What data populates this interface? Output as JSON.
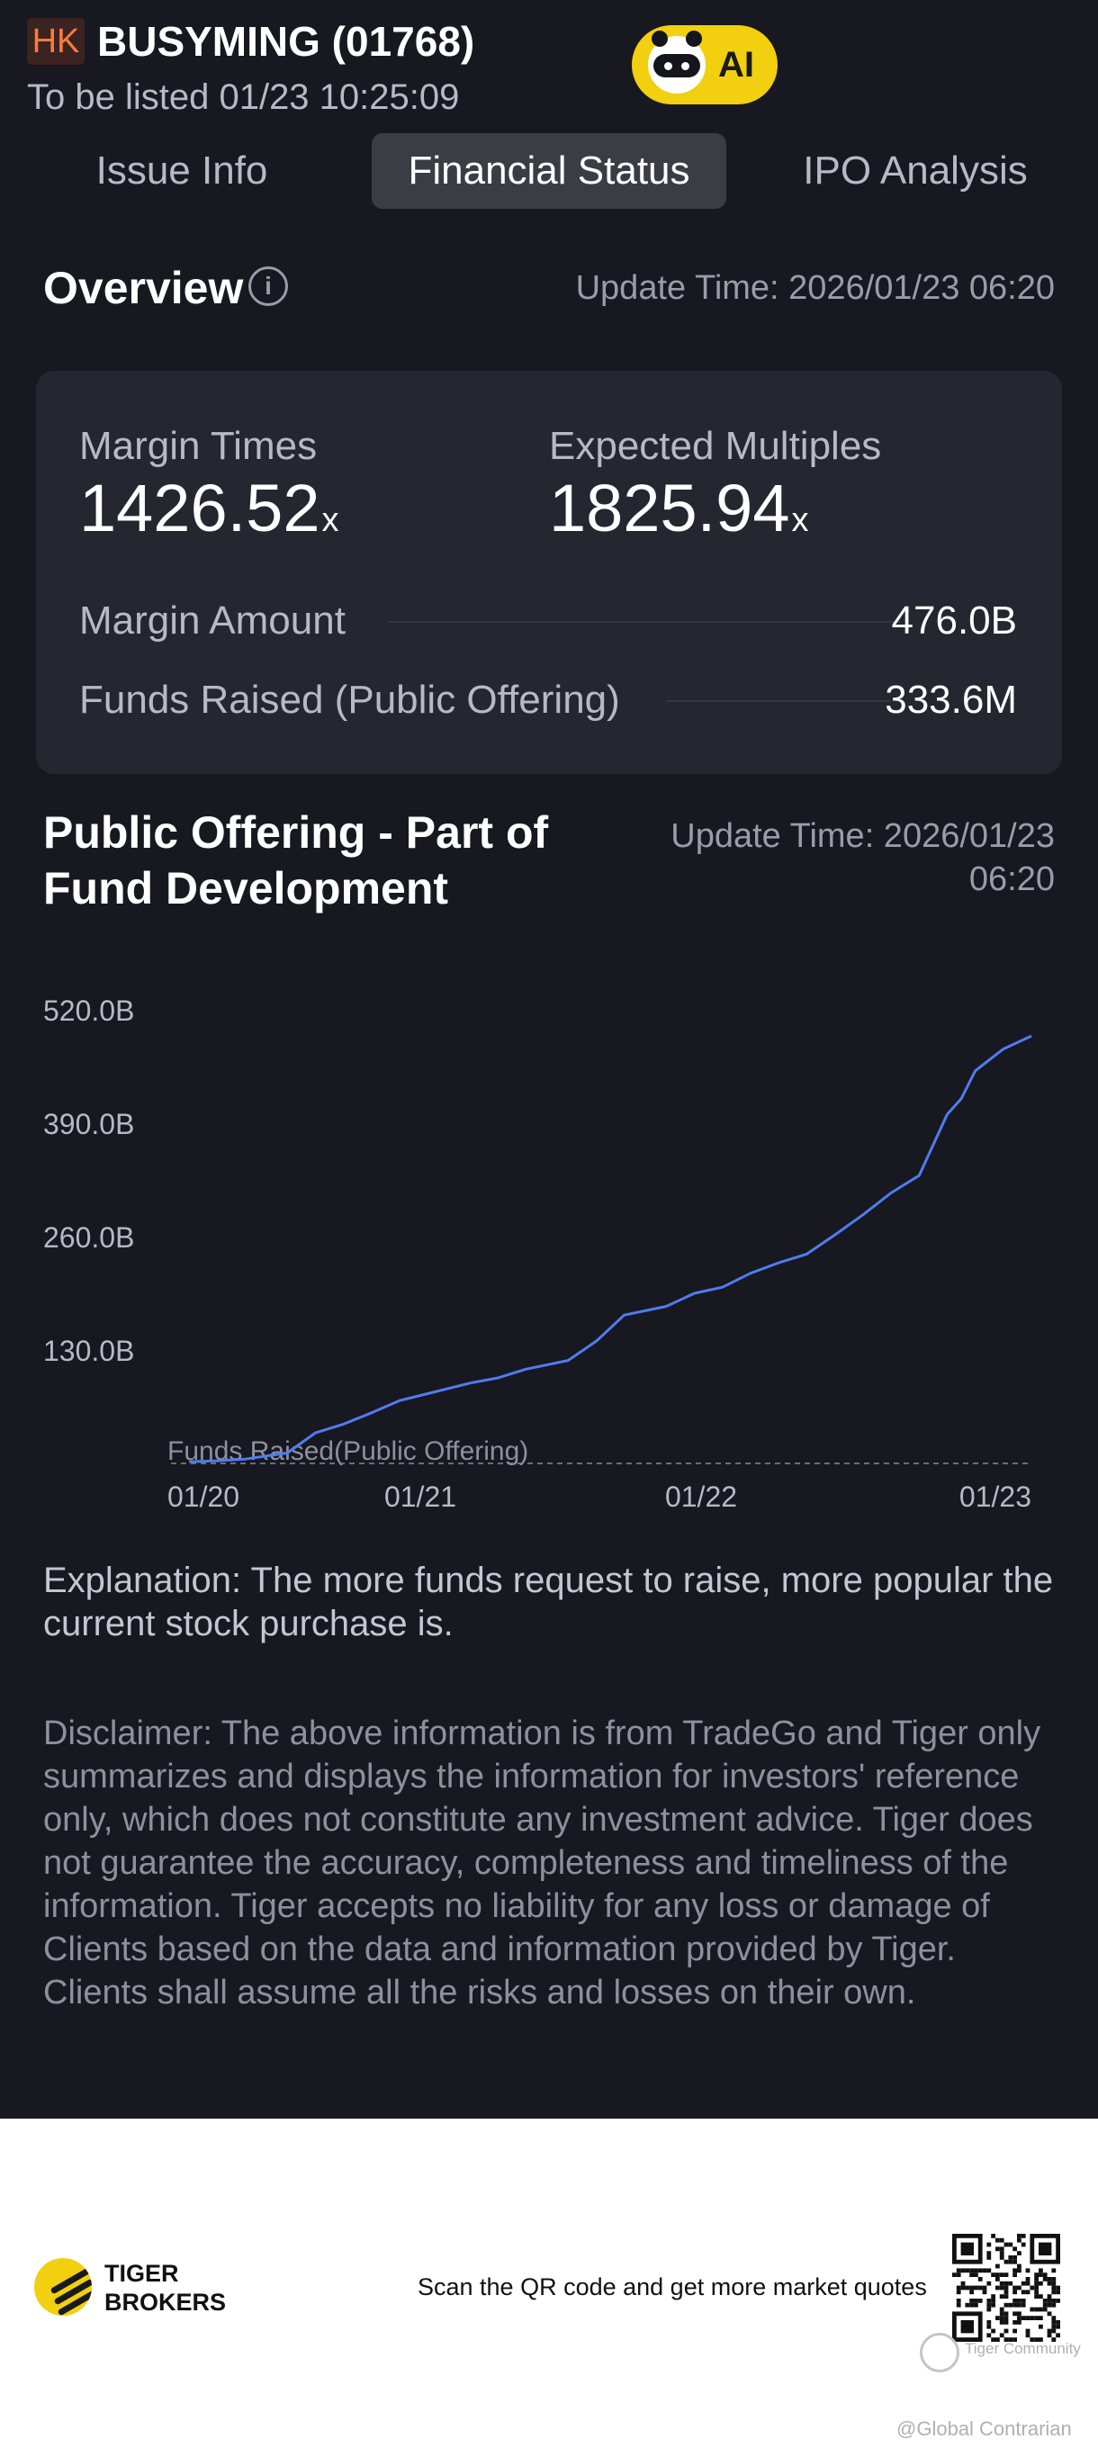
{
  "header": {
    "market": "HK",
    "stock_name": "BUSYMING (01768)",
    "listing_time": "To be listed 01/23 10:25:09",
    "ai_label": "AI"
  },
  "tabs": [
    {
      "label": "Issue Info",
      "active": false
    },
    {
      "label": "Financial Status",
      "active": true
    },
    {
      "label": "IPO Analysis",
      "active": false
    }
  ],
  "overview": {
    "title": "Overview",
    "info_glyph": "i",
    "update_time": "Update Time: 2026/01/23 06:20",
    "margin_times_label": "Margin Times",
    "margin_times_value": "1426.52",
    "margin_times_unit": "x",
    "expected_multiples_label": "Expected Multiples",
    "expected_multiples_value": "1825.94",
    "expected_multiples_unit": "x",
    "margin_amount_label": "Margin Amount",
    "margin_amount_value": "476.0B",
    "funds_raised_label": "Funds Raised (Public Offering)",
    "funds_raised_value": "333.6M"
  },
  "fund_section": {
    "title_line1": "Public Offering - Part of",
    "title_line2": "Fund Development",
    "update_time_line1": "Update Time: 2026/01/23",
    "update_time_line2": "06:20"
  },
  "chart_data": {
    "type": "line",
    "y_ticks": [
      "520.0B",
      "390.0B",
      "260.0B",
      "130.0B"
    ],
    "y_tick_values": [
      520,
      390,
      260,
      130
    ],
    "ylim": [
      0,
      520
    ],
    "y_unit": "B",
    "x_ticks": [
      "01/20",
      "01/21",
      "01/22",
      "01/23"
    ],
    "x_tick_values": [
      0,
      1,
      2,
      3
    ],
    "xlim": [
      0,
      3
    ],
    "grid": false,
    "series": [
      {
        "name": "Funds Raised(Public Offering)",
        "color": "#4f7cf0",
        "x": [
          0.0,
          0.1,
          0.2,
          0.35,
          0.45,
          0.55,
          0.65,
          0.75,
          0.85,
          1.0,
          1.1,
          1.2,
          1.35,
          1.45,
          1.55,
          1.7,
          1.8,
          1.9,
          2.0,
          2.1,
          2.2,
          2.3,
          2.4,
          2.5,
          2.6,
          2.7,
          2.75,
          2.8,
          2.9,
          3.0
        ],
        "y": [
          2,
          3,
          5,
          12,
          35,
          45,
          58,
          72,
          80,
          92,
          98,
          108,
          118,
          140,
          170,
          180,
          195,
          202,
          218,
          230,
          240,
          262,
          285,
          310,
          330,
          400,
          418,
          450,
          475,
          490
        ]
      }
    ]
  },
  "explanation": "Explanation: The more funds request to raise, more popular the current stock purchase is.",
  "disclaimer": "Disclaimer: The above information is from TradeGo and Tiger only summarizes and displays the information for investors' reference only, which does not constitute any investment advice. Tiger does not guarantee the accuracy, completeness and timeliness of the information. Tiger accepts no liability for any loss or damage of Clients based on the data and information provided by Tiger. Clients shall assume all the risks and losses on their own.",
  "footer": {
    "brand_line1": "TIGER",
    "brand_line2": "BROKERS",
    "scan_text": "Scan the QR code and get more market quotes",
    "watermark_community": "Tiger Community",
    "watermark_user": "@Global Contrarian"
  },
  "colors": {
    "background": "#171820",
    "card": "#25262f",
    "accent_line": "#4f7cf0",
    "ai_yellow": "#f2cf0f",
    "market_badge": "#ff7a3c"
  }
}
